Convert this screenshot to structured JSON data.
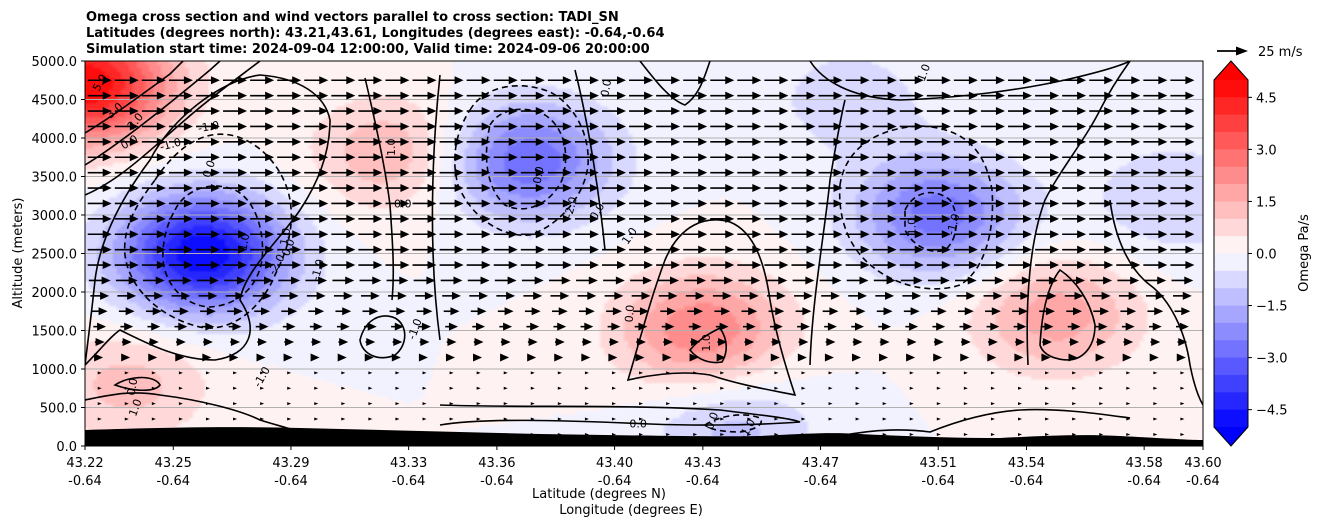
{
  "chart_data": {
    "type": "heatmap",
    "title": [
      "Omega cross section and wind vectors parallel to cross section: TADI_SN",
      "Latitudes (degrees north): 43.21,43.61, Longitudes (degrees east): -0.64,-0.64",
      "Simulation start time: 2024-09-04 12:00:00, Valid time: 2024-09-06 20:00:00"
    ],
    "xlabel": [
      "Latitude (degrees N)",
      "Longitude (degrees E)"
    ],
    "ylabel": "Altitude (meters)",
    "x_ticks": [
      {
        "lat": "43.22",
        "lon": "-0.64"
      },
      {
        "lat": "43.25",
        "lon": "-0.64"
      },
      {
        "lat": "43.29",
        "lon": "-0.64"
      },
      {
        "lat": "43.33",
        "lon": "-0.64"
      },
      {
        "lat": "43.36",
        "lon": "-0.64"
      },
      {
        "lat": "43.40",
        "lon": "-0.64"
      },
      {
        "lat": "43.43",
        "lon": "-0.64"
      },
      {
        "lat": "43.47",
        "lon": "-0.64"
      },
      {
        "lat": "43.51",
        "lon": "-0.64"
      },
      {
        "lat": "43.54",
        "lon": "-0.64"
      },
      {
        "lat": "43.58",
        "lon": "-0.64"
      },
      {
        "lat": "43.60",
        "lon": "-0.64"
      }
    ],
    "x_range": [
      43.22,
      43.6
    ],
    "y_ticks": [
      "0.0",
      "500.0",
      "1000.0",
      "1500.0",
      "2000.0",
      "2500.0",
      "3000.0",
      "3500.0",
      "4000.0",
      "4500.0",
      "5000.0"
    ],
    "ylim": [
      0,
      5000
    ],
    "grid": "horizontal",
    "colorbar": {
      "label": "Omega Pa/s",
      "ticks": [
        "4.5",
        "3.0",
        "1.5",
        "0.0",
        "−1.5",
        "−3.0",
        "−4.5"
      ],
      "range": [
        -5.0,
        5.0
      ],
      "step": 0.5,
      "colormap": "bwr",
      "low_color": "#0000ff",
      "mid_color": "#ffffff",
      "high_color": "#ff0000"
    },
    "quiver_key": {
      "label": "25 m/s",
      "speed": 25
    },
    "terrain_color": "#000000",
    "omega_features": [
      {
        "lat": 43.22,
        "alt": 4700,
        "omega": 5.0
      },
      {
        "lat": 43.26,
        "alt": 2500,
        "omega": -5.0
      },
      {
        "lat": 43.37,
        "alt": 3700,
        "omega": -3.0
      },
      {
        "lat": 43.43,
        "alt": 1500,
        "omega": 2.5
      },
      {
        "lat": 43.51,
        "alt": 3000,
        "omega": -2.8
      },
      {
        "lat": 43.325,
        "alt": 3800,
        "omega": 1.5
      },
      {
        "lat": 43.55,
        "alt": 1700,
        "omega": 1.8
      },
      {
        "lat": 43.235,
        "alt": 800,
        "omega": 1.2
      },
      {
        "lat": 43.44,
        "alt": 250,
        "omega": -1.2
      },
      {
        "lat": 43.48,
        "alt": 4500,
        "omega": -0.8
      },
      {
        "lat": 43.59,
        "alt": 3200,
        "omega": -1.0
      }
    ],
    "contour_labels": [
      "5.0",
      "3.0",
      "2.0",
      "0.0",
      "-1.0",
      "-1.0",
      "0.0",
      "1.0",
      "1.0",
      "-2.0",
      "-1.0",
      "0.0",
      "-1.0",
      "0.0",
      "1.0",
      "2.0",
      "1.0",
      "0.0",
      "-1.0",
      "0.0",
      "-2.0",
      "0.0",
      "0.0",
      "1.0",
      "0.0",
      "0.0",
      "1.0",
      "0.0",
      "-1.0",
      "1.0",
      "1.0",
      "-1.0"
    ]
  }
}
